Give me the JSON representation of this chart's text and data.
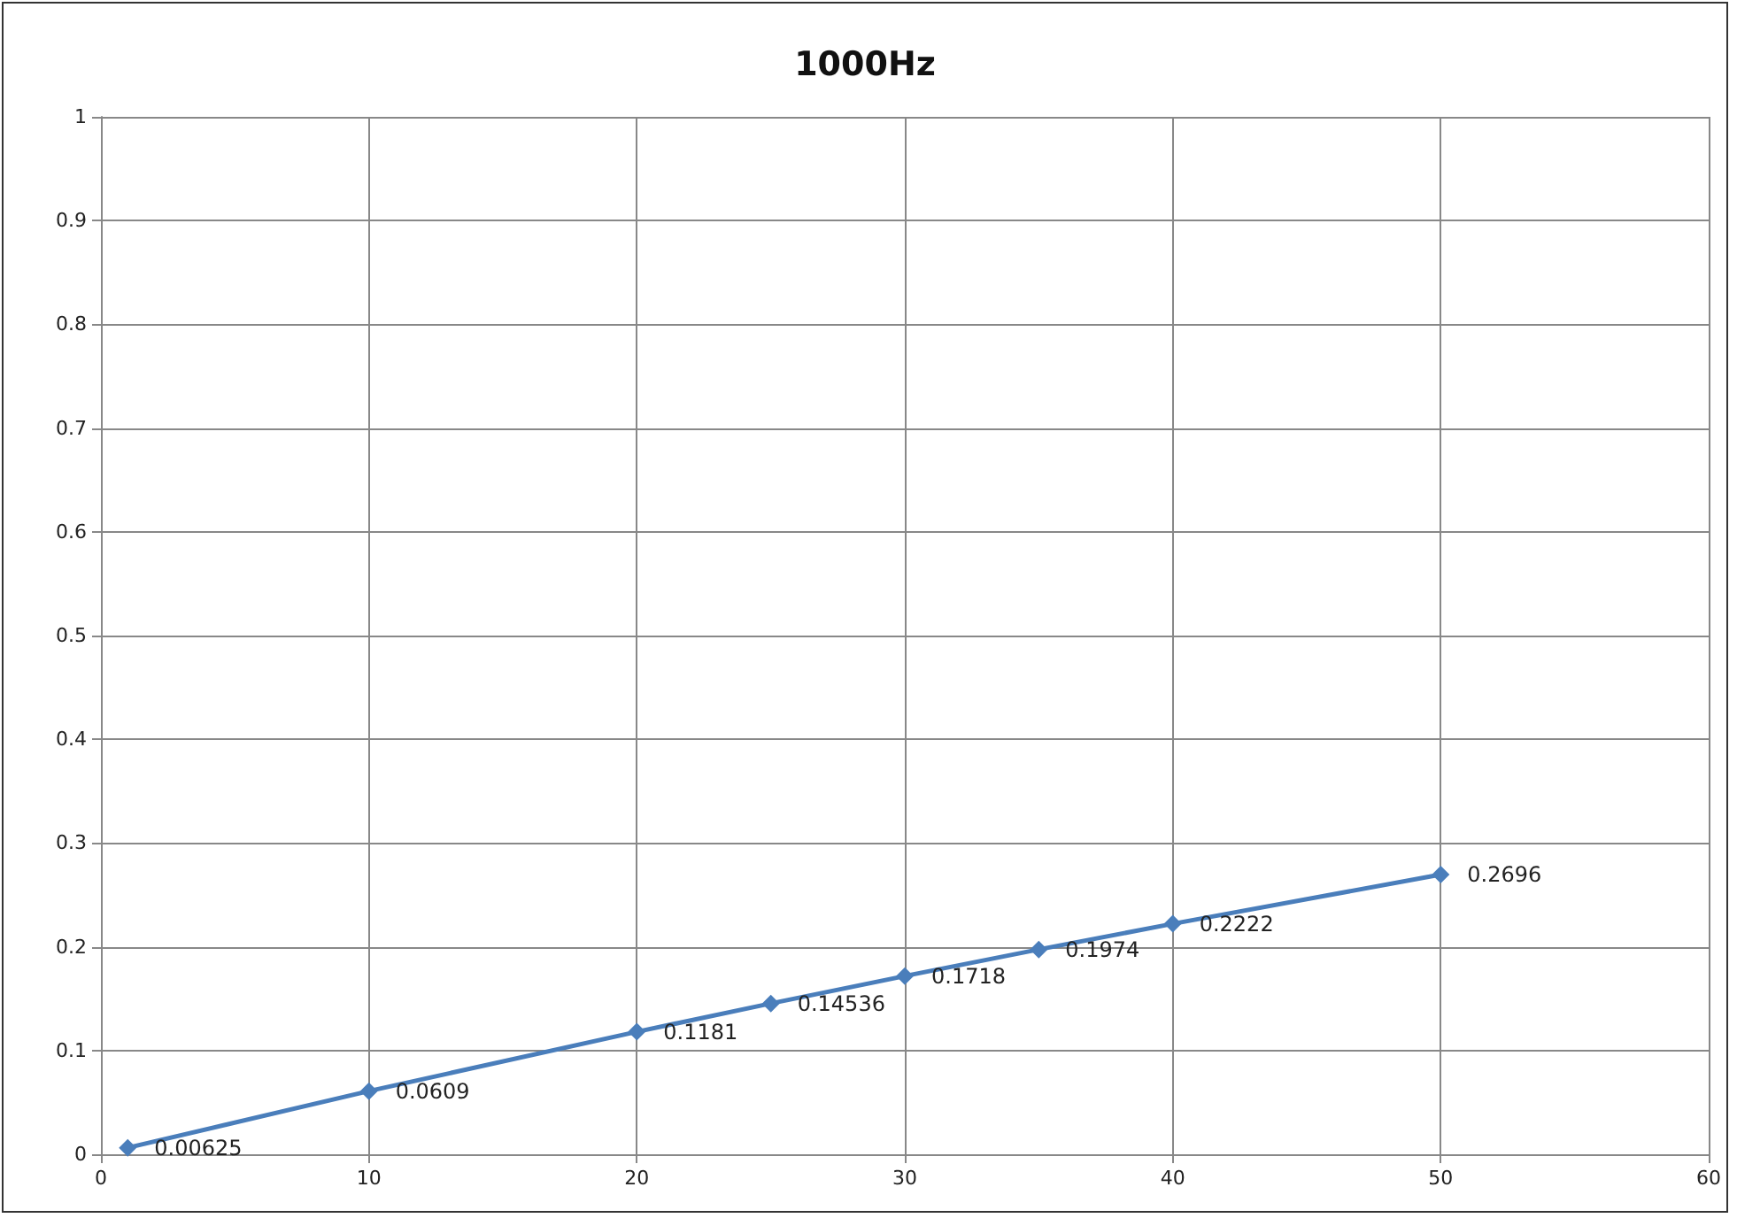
{
  "chart_data": {
    "type": "line",
    "title": "1000Hz",
    "x": [
      1,
      10,
      20,
      25,
      30,
      35,
      40,
      50
    ],
    "series": [
      {
        "color": "#4a7ebb",
        "values": [
          0.00625,
          0.0609,
          0.1181,
          0.14536,
          0.1718,
          0.1974,
          0.2222,
          0.2696
        ]
      }
    ],
    "xlim": [
      0,
      60
    ],
    "xticks": [
      0,
      10,
      20,
      30,
      40,
      50,
      60
    ],
    "ylim": [
      0,
      1
    ],
    "yticks": [
      0,
      0.1,
      0.2,
      0.3,
      0.4,
      0.5,
      0.6,
      0.7,
      0.8,
      0.9,
      1
    ],
    "grid": true,
    "marker": "diamond",
    "line_style": "solid",
    "data_labels": true
  }
}
